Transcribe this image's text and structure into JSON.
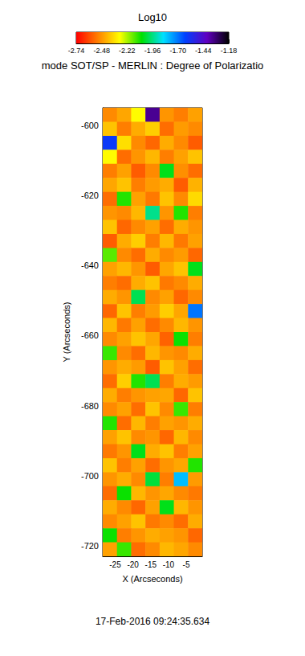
{
  "chart_data": {
    "type": "heatmap",
    "title": "mode SOT/SP - MERLIN : Degree of Polarizatio",
    "subtitle": "17-Feb-2016 09:24:35.634",
    "x_label": "X (Arcseconds)",
    "y_label": "Y (Arcseconds)",
    "xlim": [
      -28.5,
      -0.5
    ],
    "xticks": [
      -25,
      -20,
      -15,
      -10,
      -5
    ],
    "ylim": [
      -723,
      -595
    ],
    "yticks": [
      -720,
      -700,
      -680,
      -660,
      -640,
      -620,
      -600
    ],
    "cells": {
      "x": [
        -26.5,
        -22.5,
        -18.5,
        -14.5,
        -10.5,
        -6.5,
        -2.5
      ],
      "y": [
        -597,
        -601,
        -605,
        -609,
        -613,
        -617,
        -621,
        -625,
        -629,
        -633,
        -637,
        -641,
        -645,
        -649,
        -653,
        -657,
        -661,
        -665,
        -669,
        -673,
        -677,
        -681,
        -685,
        -689,
        -693,
        -697,
        -701,
        -705,
        -709,
        -713,
        -717,
        -721
      ],
      "values": [
        [
          -2.5,
          -2.45,
          -2.3,
          -1.35,
          -2.48,
          -2.52,
          -2.46
        ],
        [
          -2.4,
          -2.52,
          -2.44,
          -2.38,
          -2.55,
          -2.47,
          -2.5
        ],
        [
          -1.6,
          -2.35,
          -2.5,
          -2.56,
          -2.44,
          -2.5,
          -2.58
        ],
        [
          -2.3,
          -2.55,
          -2.48,
          -2.42,
          -2.52,
          -2.46,
          -2.4
        ],
        [
          -2.52,
          -2.46,
          -2.58,
          -2.5,
          -2.05,
          -2.49,
          -2.55
        ],
        [
          -2.45,
          -2.4,
          -2.52,
          -2.47,
          -2.44,
          -2.58,
          -2.43
        ],
        [
          -2.55,
          -2.1,
          -2.46,
          -2.53,
          -2.4,
          -2.5,
          -2.36
        ],
        [
          -2.48,
          -2.5,
          -2.42,
          -1.95,
          -2.48,
          -2.1,
          -2.52
        ],
        [
          -2.4,
          -2.56,
          -2.5,
          -2.46,
          -2.55,
          -2.44,
          -2.48
        ],
        [
          -2.58,
          -2.44,
          -2.38,
          -2.52,
          -2.42,
          -2.53,
          -2.46
        ],
        [
          -2.15,
          -2.5,
          -2.55,
          -2.44,
          -2.5,
          -2.47,
          -2.56
        ],
        [
          -2.46,
          -2.42,
          -2.48,
          -2.58,
          -2.45,
          -2.4,
          -2.05
        ],
        [
          -2.52,
          -2.55,
          -2.44,
          -2.4,
          -2.53,
          -2.5,
          -2.44
        ],
        [
          -2.44,
          -2.48,
          -2.0,
          -2.5,
          -2.46,
          -2.56,
          -2.5
        ],
        [
          -2.56,
          -2.4,
          -2.52,
          -2.47,
          -2.38,
          -2.45,
          -1.7
        ],
        [
          -2.42,
          -2.53,
          -2.46,
          -2.55,
          -2.5,
          -2.42,
          -2.48
        ],
        [
          -2.5,
          -2.46,
          -2.4,
          -2.45,
          -2.57,
          -2.08,
          -2.52
        ],
        [
          -2.12,
          -2.5,
          -2.55,
          -2.42,
          -2.48,
          -2.5,
          -2.44
        ],
        [
          -2.48,
          -2.44,
          -2.47,
          -2.58,
          -2.4,
          -2.46,
          -2.55
        ],
        [
          -2.55,
          -2.38,
          -2.1,
          -2.0,
          -2.52,
          -2.44,
          -2.47
        ],
        [
          -2.44,
          -2.52,
          -2.48,
          -2.46,
          -2.45,
          -2.56,
          -2.4
        ],
        [
          -2.5,
          -2.46,
          -2.55,
          -2.4,
          -2.5,
          -2.12,
          -2.52
        ],
        [
          -2.1,
          -2.55,
          -2.42,
          -2.52,
          -2.46,
          -2.48,
          -2.44
        ],
        [
          -2.46,
          -2.4,
          -2.5,
          -2.48,
          -2.56,
          -2.42,
          -2.5
        ],
        [
          -2.53,
          -2.48,
          -2.05,
          -2.44,
          -2.4,
          -2.52,
          -2.46
        ],
        [
          -2.4,
          -2.52,
          -2.46,
          -2.55,
          -2.48,
          -2.45,
          -2.1
        ],
        [
          -2.48,
          -2.44,
          -2.5,
          -2.02,
          -2.52,
          -1.8,
          -2.47
        ],
        [
          -2.55,
          -2.08,
          -2.42,
          -2.48,
          -2.45,
          -2.5,
          -2.53
        ],
        [
          -2.44,
          -2.5,
          -2.56,
          -2.46,
          -2.05,
          -2.42,
          -2.48
        ],
        [
          -2.5,
          -2.46,
          -2.4,
          -2.53,
          -2.5,
          -2.55,
          -2.44
        ],
        [
          -2.08,
          -2.52,
          -2.48,
          -2.44,
          -2.46,
          -2.48,
          -2.56
        ],
        [
          -2.46,
          -2.12,
          -2.55,
          -2.5,
          -2.42,
          -2.45,
          -2.5
        ]
      ]
    },
    "colorbar": {
      "label": "Log10",
      "range": [
        -2.74,
        -1.18
      ],
      "ticks": [
        -2.74,
        -2.48,
        -2.22,
        -1.96,
        {
          "value": -1.7,
          "label": "-1.70"
        },
        -1.44,
        -1.18
      ]
    }
  }
}
